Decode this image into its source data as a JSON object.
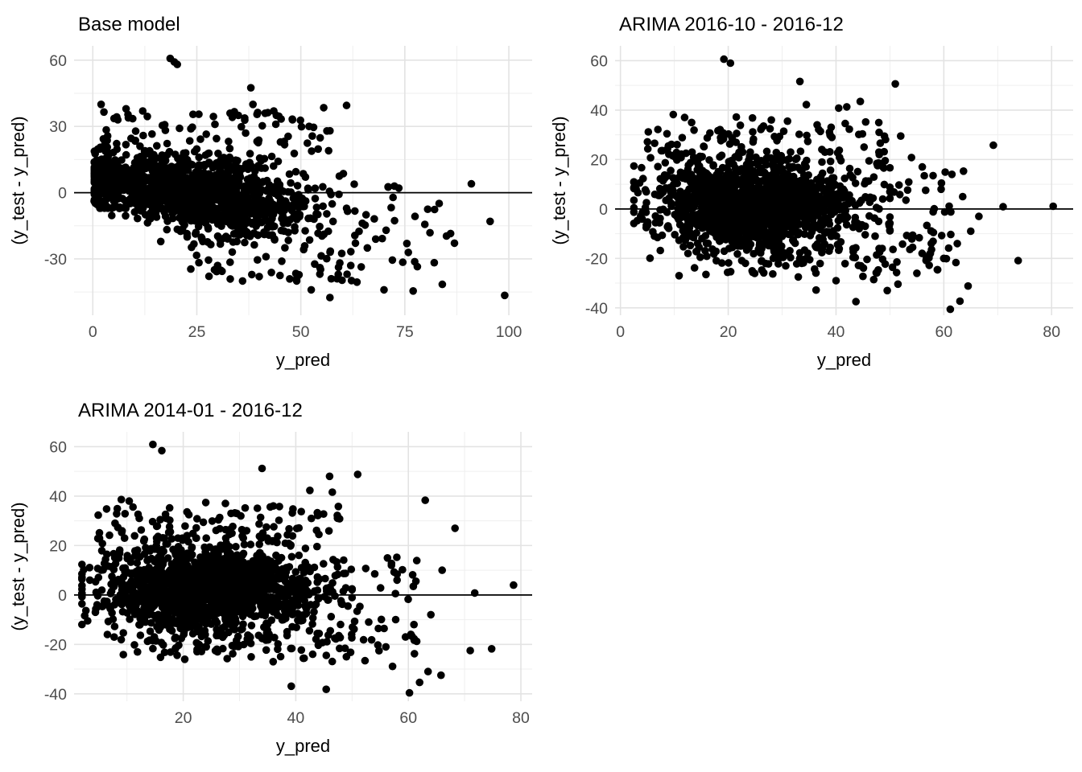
{
  "page": {
    "background": "#ffffff"
  },
  "chart_data": [
    {
      "type": "scatter",
      "title": "Base model",
      "xlabel": "y_pred",
      "ylabel": "(y_test - y_pred)",
      "xlim": [
        -4.5,
        105.6
      ],
      "ylim": [
        -55.5,
        66.5
      ],
      "xticks": [
        0,
        25,
        50,
        75,
        100
      ],
      "yticks": [
        -30,
        0,
        30,
        60
      ],
      "grid": "major+minor",
      "hline": 0,
      "legend": "none",
      "seed": 42,
      "cloud": [
        {
          "n": 1250,
          "x": {
            "dist": "normal",
            "mean": 25,
            "sd": 13,
            "min": 0.4,
            "max": 63
          },
          "y": {
            "dist": "normal",
            "base": 6.5,
            "slope": -0.26,
            "sd": 6.2,
            "sd_slope": 0.075,
            "min": -47,
            "max": 45
          }
        },
        {
          "n": 130,
          "x": {
            "dist": "uniform",
            "min": 0.3,
            "max": 6
          },
          "y": {
            "dist": "normal",
            "base": 7,
            "slope": 0,
            "sd": 7,
            "sd_slope": 0,
            "min": -7,
            "max": 26
          }
        },
        {
          "n": 65,
          "x": {
            "dist": "uniform",
            "min": 2,
            "max": 58
          },
          "y": {
            "dist": "uniform",
            "min": 17,
            "max": 37
          }
        },
        {
          "n": 60,
          "x": {
            "dist": "uniform",
            "min": 22,
            "max": 68
          },
          "y": {
            "dist": "uniform",
            "min": -41,
            "max": -14
          }
        },
        {
          "n": 26,
          "x": {
            "dist": "uniform",
            "min": 55,
            "max": 88
          },
          "y": {
            "dist": "uniform",
            "min": -32,
            "max": 4
          }
        }
      ],
      "outliers": [
        [
          18.6,
          60.8
        ],
        [
          19.6,
          59.2
        ],
        [
          20.3,
          58.1
        ],
        [
          38,
          47.5
        ],
        [
          2,
          40
        ],
        [
          8,
          38
        ],
        [
          38.5,
          40
        ],
        [
          43.5,
          37
        ],
        [
          55.5,
          38.5
        ],
        [
          61,
          39.5
        ],
        [
          33,
          36
        ],
        [
          25.5,
          35.5
        ],
        [
          12,
          37
        ],
        [
          6,
          33
        ],
        [
          29,
          34.5
        ],
        [
          35,
          35
        ],
        [
          48,
          33
        ],
        [
          52,
          30
        ],
        [
          57,
          28
        ],
        [
          44,
          31
        ],
        [
          91,
          4
        ],
        [
          95.5,
          -13
        ],
        [
          99,
          -46.5
        ],
        [
          77,
          -44.5
        ],
        [
          84,
          -41.5
        ],
        [
          71,
          2.5
        ],
        [
          72.5,
          3
        ],
        [
          72,
          -30.5
        ],
        [
          74.5,
          -31.5
        ],
        [
          70.5,
          -17
        ],
        [
          75.5,
          -23
        ],
        [
          78,
          -33.5
        ],
        [
          80.5,
          -7.5
        ],
        [
          86,
          -18.5
        ],
        [
          70,
          -44
        ],
        [
          63.5,
          -40.5
        ],
        [
          59,
          -37
        ],
        [
          52.5,
          -44
        ],
        [
          57,
          -47.5
        ],
        [
          66,
          -25
        ],
        [
          68,
          -21
        ],
        [
          64,
          -17.5
        ],
        [
          62,
          -33
        ],
        [
          49,
          -40
        ],
        [
          45,
          -37.5
        ],
        [
          40,
          -38
        ],
        [
          36,
          -40
        ],
        [
          33,
          -31.5
        ],
        [
          30,
          -33
        ]
      ],
      "colors": {
        "point": "#000000",
        "hline": "#000000",
        "grid_major": "#e3e3e3",
        "grid_minor": "#efefef",
        "tick_label": "#4d4d4d",
        "text": "#000000",
        "panel_bg": "#ffffff"
      }
    },
    {
      "type": "scatter",
      "title": "ARIMA 2016-10 - 2016-12",
      "xlabel": "y_pred",
      "ylabel": "(y_test - y_pred)",
      "xlim": [
        -1,
        84
      ],
      "ylim": [
        -43,
        66
      ],
      "xticks": [
        0,
        20,
        40,
        60,
        80
      ],
      "yticks": [
        -40,
        -20,
        0,
        20,
        40,
        60
      ],
      "grid": "major+minor",
      "hline": 0,
      "legend": "none",
      "seed": 1337,
      "cloud": [
        {
          "n": 1500,
          "x": {
            "dist": "normal",
            "mean": 25,
            "sd": 9.5,
            "min": 2.5,
            "max": 50
          },
          "y": {
            "dist": "normal",
            "base": 1.5,
            "slope": 0,
            "sd": 8.2,
            "sd_slope": 0,
            "min": -27,
            "max": 23
          }
        },
        {
          "n": 110,
          "x": {
            "dist": "uniform",
            "min": 5,
            "max": 50
          },
          "y": {
            "dist": "uniform",
            "min": 17,
            "max": 36
          }
        },
        {
          "n": 70,
          "x": {
            "dist": "uniform",
            "min": 12,
            "max": 52
          },
          "y": {
            "dist": "uniform",
            "min": -27,
            "max": -14
          }
        },
        {
          "n": 55,
          "x": {
            "dist": "uniform",
            "min": 45,
            "max": 64
          },
          "y": {
            "dist": "uniform",
            "min": -25,
            "max": 17
          }
        }
      ],
      "outliers": [
        [
          19.2,
          60.6
        ],
        [
          20.4,
          59
        ],
        [
          33.3,
          51.6
        ],
        [
          51,
          50.6
        ],
        [
          44.5,
          43.5
        ],
        [
          34.5,
          42.2
        ],
        [
          42,
          41.3
        ],
        [
          40.5,
          40.8
        ],
        [
          11.9,
          37
        ],
        [
          13.2,
          35
        ],
        [
          9.8,
          38.2
        ],
        [
          21.5,
          37.2
        ],
        [
          24.5,
          36.8
        ],
        [
          28,
          36
        ],
        [
          31,
          35.5
        ],
        [
          36.5,
          34
        ],
        [
          45.5,
          35.2
        ],
        [
          48,
          31
        ],
        [
          52,
          29.5
        ],
        [
          54,
          20.8
        ],
        [
          56,
          17
        ],
        [
          58,
          13.5
        ],
        [
          61.5,
          14
        ],
        [
          69.2,
          25.8
        ],
        [
          71,
          0.9
        ],
        [
          80.3,
          1.1
        ],
        [
          73.8,
          -20.9
        ],
        [
          61.2,
          -40.6
        ],
        [
          63,
          -37.3
        ],
        [
          64.5,
          -31.2
        ],
        [
          43.7,
          -37.5
        ],
        [
          36.3,
          -32.8
        ],
        [
          33,
          -27.5
        ],
        [
          47,
          -28.6
        ],
        [
          51.5,
          -30.4
        ],
        [
          58.8,
          -24.6
        ],
        [
          55,
          -26
        ],
        [
          49.5,
          -33
        ],
        [
          45,
          -27.3
        ],
        [
          40,
          -29
        ],
        [
          57.5,
          -18
        ],
        [
          60,
          -20
        ],
        [
          62.5,
          -14
        ],
        [
          65,
          -9
        ],
        [
          66.5,
          -3
        ],
        [
          63.5,
          5
        ],
        [
          59.5,
          8
        ]
      ],
      "colors": {
        "point": "#000000",
        "hline": "#000000",
        "grid_major": "#e3e3e3",
        "grid_minor": "#efefef",
        "tick_label": "#4d4d4d",
        "text": "#000000",
        "panel_bg": "#ffffff"
      }
    },
    {
      "type": "scatter",
      "title": "ARIMA 2014-01 - 2016-12",
      "xlabel": "y_pred",
      "ylabel": "(y_test - y_pred)",
      "xlim": [
        0.6,
        82
      ],
      "ylim": [
        -43,
        66
      ],
      "xticks": [
        20,
        40,
        60,
        80
      ],
      "yticks": [
        -40,
        -20,
        0,
        20,
        40,
        60
      ],
      "grid": "major+minor",
      "hline": 0,
      "legend": "none",
      "seed": 2024,
      "cloud": [
        {
          "n": 1500,
          "x": {
            "dist": "normal",
            "mean": 24,
            "sd": 9.5,
            "min": 2,
            "max": 50
          },
          "y": {
            "dist": "normal",
            "base": 1.5,
            "slope": 0,
            "sd": 8.2,
            "sd_slope": 0,
            "min": -27,
            "max": 23
          }
        },
        {
          "n": 110,
          "x": {
            "dist": "uniform",
            "min": 4,
            "max": 48
          },
          "y": {
            "dist": "uniform",
            "min": 17,
            "max": 36
          }
        },
        {
          "n": 70,
          "x": {
            "dist": "uniform",
            "min": 11,
            "max": 50
          },
          "y": {
            "dist": "uniform",
            "min": -27,
            "max": -14
          }
        },
        {
          "n": 55,
          "x": {
            "dist": "uniform",
            "min": 43,
            "max": 62
          },
          "y": {
            "dist": "uniform",
            "min": -24,
            "max": 16
          }
        }
      ],
      "outliers": [
        [
          14.6,
          60.9
        ],
        [
          16.2,
          58.4
        ],
        [
          34,
          51.2
        ],
        [
          51,
          48.8
        ],
        [
          46,
          48
        ],
        [
          42.5,
          42.3
        ],
        [
          46.5,
          41.6
        ],
        [
          63,
          38.3
        ],
        [
          9,
          38.6
        ],
        [
          10.4,
          38
        ],
        [
          24,
          37.4
        ],
        [
          27.5,
          37
        ],
        [
          31,
          35.2
        ],
        [
          36,
          36
        ],
        [
          39.5,
          34.8
        ],
        [
          28.5,
          33
        ],
        [
          21,
          32.5
        ],
        [
          17,
          31
        ],
        [
          68.3,
          27
        ],
        [
          78.7,
          4
        ],
        [
          71.8,
          0.8
        ],
        [
          71,
          -22.5
        ],
        [
          74.8,
          -21.8
        ],
        [
          60.2,
          -39.6
        ],
        [
          62,
          -35.4
        ],
        [
          45.4,
          -38.2
        ],
        [
          39.2,
          -36.9
        ],
        [
          57.2,
          -28.9
        ],
        [
          52.3,
          -26.6
        ],
        [
          63.5,
          -31
        ],
        [
          65.8,
          -32.5
        ],
        [
          49,
          -25
        ],
        [
          43,
          -24
        ],
        [
          56,
          -21
        ],
        [
          59.5,
          -17
        ],
        [
          61,
          -12
        ],
        [
          64,
          -8
        ],
        [
          58,
          6
        ],
        [
          61.5,
          13.9
        ],
        [
          57,
          12
        ],
        [
          66,
          10
        ]
      ],
      "colors": {
        "point": "#000000",
        "hline": "#000000",
        "grid_major": "#e3e3e3",
        "grid_minor": "#efefef",
        "tick_label": "#4d4d4d",
        "text": "#000000",
        "panel_bg": "#ffffff"
      }
    }
  ]
}
